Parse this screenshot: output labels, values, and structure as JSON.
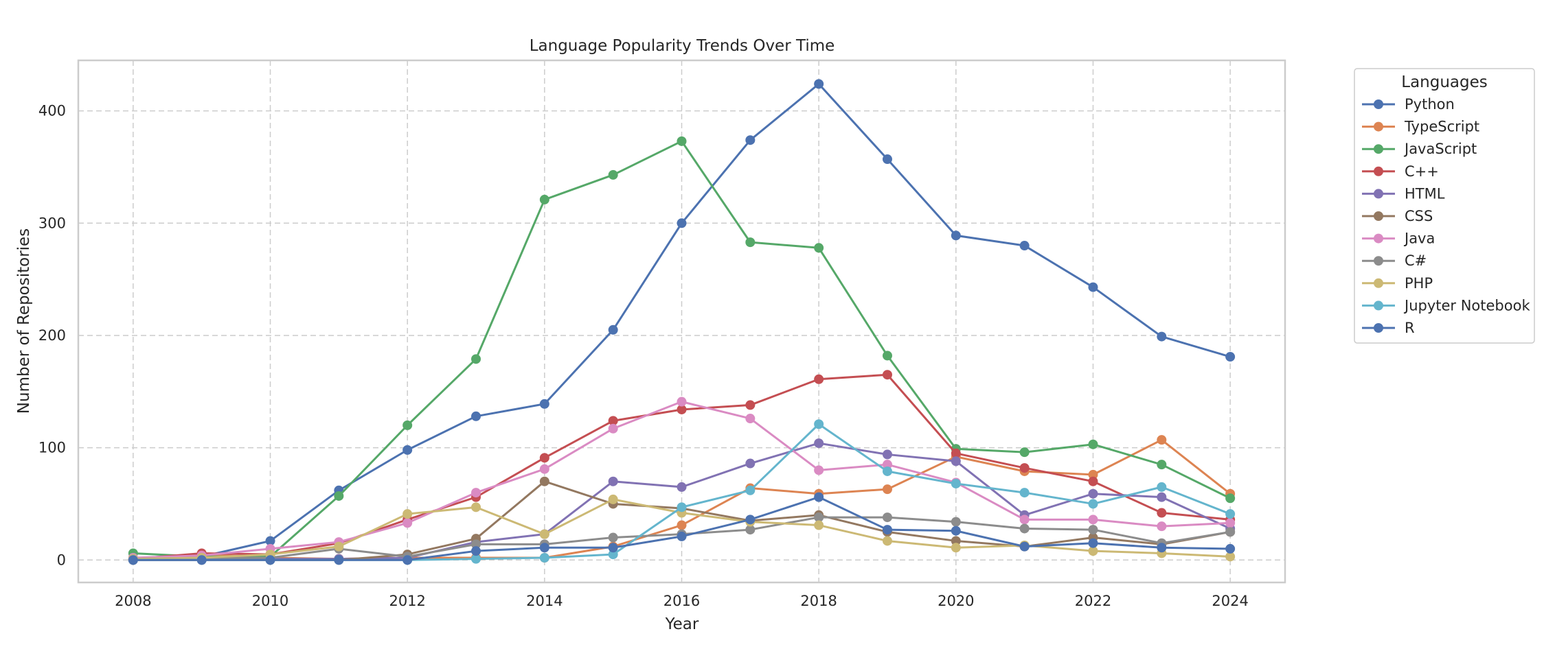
{
  "chart_data": {
    "type": "line",
    "title": "Language Popularity Trends Over Time",
    "xlabel": "Year",
    "ylabel": "Number of Repositories",
    "xlim": [
      2007.2,
      2024.8
    ],
    "ylim": [
      -20,
      445
    ],
    "xticks": [
      2008,
      2010,
      2012,
      2014,
      2016,
      2018,
      2020,
      2022,
      2024
    ],
    "yticks": [
      0,
      100,
      200,
      300,
      400
    ],
    "grid": true,
    "legend": {
      "title": "Languages",
      "placement": "outside-right"
    },
    "x": [
      2008,
      2009,
      2010,
      2011,
      2012,
      2013,
      2014,
      2015,
      2016,
      2017,
      2018,
      2019,
      2020,
      2021,
      2022,
      2023,
      2024
    ],
    "series": [
      {
        "name": "Python",
        "color": "#4c72b0",
        "values": [
          0,
          3,
          17,
          62,
          98,
          128,
          139,
          205,
          300,
          374,
          424,
          357,
          289,
          280,
          243,
          199,
          181
        ]
      },
      {
        "name": "TypeScript",
        "color": "#dd8452",
        "values": [
          0,
          5,
          2,
          1,
          2,
          2,
          2,
          12,
          31,
          64,
          59,
          63,
          92,
          79,
          76,
          107,
          59
        ]
      },
      {
        "name": "JavaScript",
        "color": "#55a868",
        "values": [
          6,
          3,
          3,
          57,
          120,
          179,
          321,
          343,
          373,
          283,
          278,
          182,
          99,
          96,
          103,
          85,
          55
        ]
      },
      {
        "name": "C++",
        "color": "#c44e52",
        "values": [
          1,
          6,
          5,
          15,
          36,
          56,
          91,
          124,
          134,
          138,
          161,
          165,
          95,
          82,
          70,
          42,
          36
        ]
      },
      {
        "name": "HTML",
        "color": "#8172b3",
        "values": [
          0,
          0,
          1,
          1,
          2,
          16,
          23,
          70,
          65,
          86,
          104,
          94,
          88,
          40,
          59,
          56,
          28
        ]
      },
      {
        "name": "CSS",
        "color": "#937860",
        "values": [
          0,
          0,
          0,
          0,
          5,
          19,
          70,
          50,
          46,
          35,
          40,
          25,
          17,
          12,
          20,
          14,
          25
        ]
      },
      {
        "name": "Java",
        "color": "#da8bc3",
        "values": [
          2,
          4,
          10,
          16,
          33,
          60,
          81,
          117,
          141,
          126,
          80,
          85,
          69,
          36,
          36,
          30,
          33
        ]
      },
      {
        "name": "C#",
        "color": "#8c8c8c",
        "values": [
          1,
          2,
          2,
          10,
          3,
          14,
          14,
          20,
          23,
          27,
          38,
          38,
          34,
          28,
          27,
          15,
          25
        ]
      },
      {
        "name": "PHP",
        "color": "#ccb974",
        "values": [
          1,
          2,
          5,
          12,
          41,
          47,
          23,
          54,
          42,
          34,
          31,
          17,
          11,
          13,
          8,
          6,
          3
        ]
      },
      {
        "name": "Jupyter Notebook",
        "color": "#64b5cd",
        "values": [
          0,
          0,
          0,
          0,
          0,
          1,
          2,
          5,
          47,
          62,
          121,
          79,
          68,
          60,
          50,
          65,
          41
        ]
      },
      {
        "name": "R",
        "color": "#4c72b0",
        "values": [
          0,
          0,
          0,
          0,
          0,
          8,
          11,
          11,
          21,
          36,
          56,
          27,
          26,
          12,
          15,
          11,
          10
        ]
      }
    ]
  }
}
